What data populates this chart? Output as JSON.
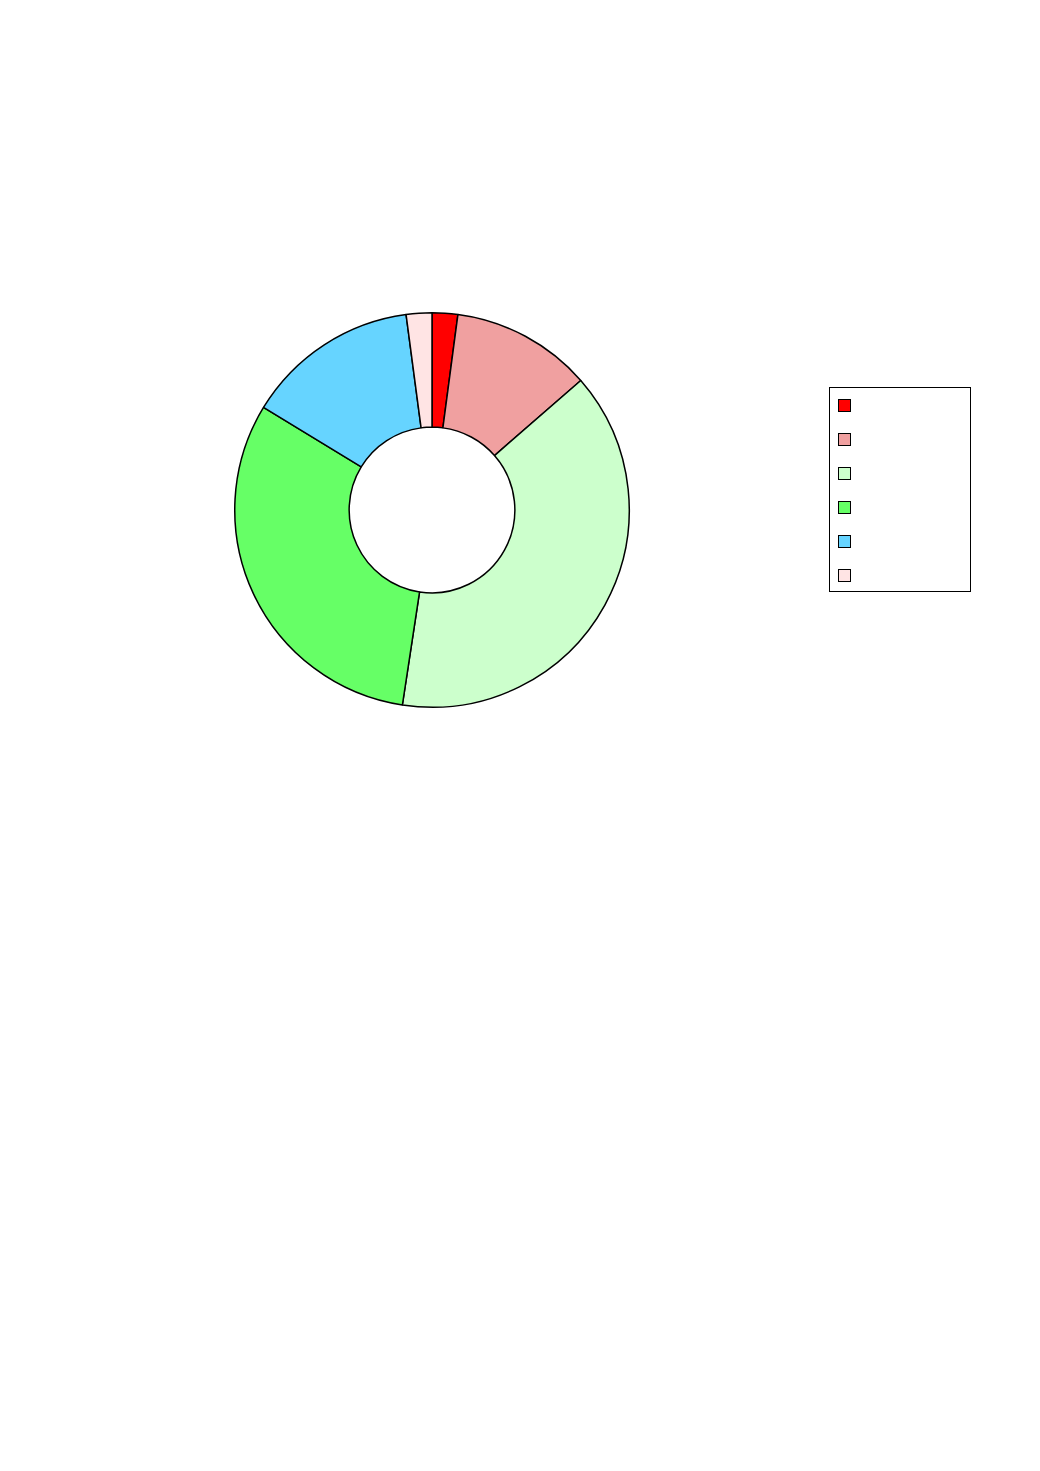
{
  "chart_data": {
    "type": "donut",
    "categories": [
      null,
      null,
      null,
      null,
      null,
      null
    ],
    "values": [
      2.1,
      11.5,
      38.8,
      31.3,
      14.2,
      2.1
    ],
    "colors": [
      "#ff0000",
      "#f0a0a0",
      "#ccffcc",
      "#66ff66",
      "#66d4ff",
      "#ffe4e4"
    ]
  }
}
